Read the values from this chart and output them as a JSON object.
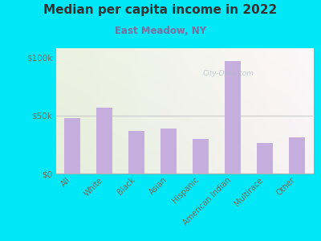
{
  "title": "Median per capita income in 2022",
  "subtitle": "East Meadow, NY",
  "categories": [
    "All",
    "White",
    "Black",
    "Asian",
    "Hispanic",
    "American Indian",
    "Multirace",
    "Other"
  ],
  "values": [
    48000,
    57000,
    37000,
    38500,
    30000,
    97000,
    26000,
    31000
  ],
  "bar_color": "#c5aedd",
  "background_outer": "#00e8f8",
  "background_inner_topleft": "#e6f2e6",
  "background_inner_topright": "#f5f5f0",
  "background_inner_bottom": "#e0ede0",
  "title_color": "#333333",
  "subtitle_color": "#7b6fa0",
  "tick_label_color": "#7a6a5a",
  "ytick_labels": [
    "$0",
    "$50k",
    "$100k"
  ],
  "ytick_values": [
    0,
    50000,
    100000
  ],
  "ylim": [
    0,
    108000
  ],
  "watermark": "City-Data.com"
}
